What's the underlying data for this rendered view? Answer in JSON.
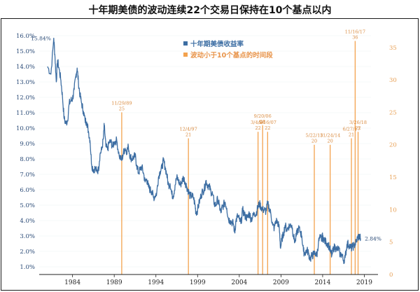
{
  "chart_data": {
    "type": "line",
    "title": "十年期美债的波动连续22个交易日保持在10个基点以内",
    "legend": [
      {
        "label": "十年期美债收益率",
        "color": "#3d6ea3"
      },
      {
        "label": "波动小于10个基点的时间段",
        "color": "#f3a24e"
      }
    ],
    "left_axis": {
      "ylim": [
        0.5,
        16.5
      ],
      "ticks": [
        "1.0%",
        "2.0%",
        "3.0%",
        "4.0%",
        "5.0%",
        "6.0%",
        "7.0%",
        "8.0%",
        "9.0%",
        "10.0%",
        "11.0%",
        "12.0%",
        "13.0%",
        "14.0%",
        "15.0%",
        "16.0%"
      ],
      "tick_values": [
        1,
        2,
        3,
        4,
        5,
        6,
        7,
        8,
        9,
        10,
        11,
        12,
        13,
        14,
        15,
        16
      ]
    },
    "right_axis": {
      "ylim": [
        0,
        38
      ],
      "ticks": [
        "0",
        "5",
        "10",
        "15",
        "20",
        "25",
        "30",
        "35"
      ],
      "tick_values": [
        0,
        5,
        10,
        15,
        20,
        25,
        30,
        35
      ]
    },
    "x_axis": {
      "xlim": [
        1980.0,
        2019.8
      ],
      "ticks": [
        "1984",
        "1989",
        "1994",
        "1999",
        "2004",
        "2009",
        "2014",
        "2019"
      ],
      "tick_values": [
        1984,
        1989,
        1994,
        1999,
        2004,
        2009,
        2014,
        2019
      ]
    },
    "series": [
      {
        "name": "十年期美债收益率",
        "color": "#3d6ea3",
        "points": [
          [
            1981.0,
            14.0
          ],
          [
            1981.4,
            13.5
          ],
          [
            1981.75,
            15.84
          ],
          [
            1981.9,
            14.6
          ],
          [
            1982.05,
            13.0
          ],
          [
            1982.2,
            14.4
          ],
          [
            1982.4,
            13.8
          ],
          [
            1982.6,
            13.1
          ],
          [
            1982.8,
            12.0
          ],
          [
            1983.0,
            10.6
          ],
          [
            1983.2,
            10.3
          ],
          [
            1983.4,
            10.5
          ],
          [
            1983.6,
            11.6
          ],
          [
            1983.8,
            11.8
          ],
          [
            1984.0,
            11.9
          ],
          [
            1984.2,
            12.5
          ],
          [
            1984.4,
            13.4
          ],
          [
            1984.55,
            13.9
          ],
          [
            1984.7,
            13.0
          ],
          [
            1984.9,
            12.1
          ],
          [
            1985.1,
            11.6
          ],
          [
            1985.3,
            11.1
          ],
          [
            1985.5,
            10.5
          ],
          [
            1985.7,
            10.4
          ],
          [
            1985.9,
            9.8
          ],
          [
            1986.1,
            9.2
          ],
          [
            1986.3,
            7.6
          ],
          [
            1986.5,
            7.3
          ],
          [
            1986.7,
            7.4
          ],
          [
            1986.9,
            7.2
          ],
          [
            1987.1,
            7.3
          ],
          [
            1987.3,
            8.3
          ],
          [
            1987.5,
            8.6
          ],
          [
            1987.7,
            9.3
          ],
          [
            1987.8,
            10.2
          ],
          [
            1988.0,
            8.8
          ],
          [
            1988.2,
            8.6
          ],
          [
            1988.4,
            9.1
          ],
          [
            1988.6,
            9.1
          ],
          [
            1988.8,
            8.8
          ],
          [
            1989.0,
            9.1
          ],
          [
            1989.3,
            9.2
          ],
          [
            1989.6,
            8.2
          ],
          [
            1989.9,
            7.9
          ],
          [
            1990.1,
            8.4
          ],
          [
            1990.3,
            8.7
          ],
          [
            1990.5,
            8.5
          ],
          [
            1990.7,
            8.8
          ],
          [
            1990.9,
            8.2
          ],
          [
            1991.1,
            8.0
          ],
          [
            1991.3,
            8.1
          ],
          [
            1991.5,
            8.2
          ],
          [
            1991.7,
            7.6
          ],
          [
            1991.9,
            7.1
          ],
          [
            1992.1,
            7.3
          ],
          [
            1992.3,
            7.5
          ],
          [
            1992.5,
            7.1
          ],
          [
            1992.7,
            6.5
          ],
          [
            1992.9,
            6.7
          ],
          [
            1993.1,
            6.2
          ],
          [
            1993.3,
            6.0
          ],
          [
            1993.5,
            5.9
          ],
          [
            1993.7,
            5.5
          ],
          [
            1993.9,
            5.6
          ],
          [
            1994.1,
            5.8
          ],
          [
            1994.3,
            6.8
          ],
          [
            1994.5,
            7.2
          ],
          [
            1994.7,
            7.4
          ],
          [
            1994.9,
            7.9
          ],
          [
            1995.1,
            7.5
          ],
          [
            1995.3,
            7.0
          ],
          [
            1995.5,
            6.3
          ],
          [
            1995.7,
            6.4
          ],
          [
            1995.9,
            5.7
          ],
          [
            1996.1,
            5.6
          ],
          [
            1996.3,
            6.3
          ],
          [
            1996.5,
            6.8
          ],
          [
            1996.7,
            6.6
          ],
          [
            1996.9,
            6.3
          ],
          [
            1997.1,
            6.5
          ],
          [
            1997.3,
            6.8
          ],
          [
            1997.5,
            6.5
          ],
          [
            1997.7,
            6.2
          ],
          [
            1997.9,
            5.9
          ],
          [
            1998.1,
            5.6
          ],
          [
            1998.3,
            5.6
          ],
          [
            1998.5,
            5.5
          ],
          [
            1998.7,
            5.0
          ],
          [
            1998.8,
            4.5
          ],
          [
            1999.0,
            4.7
          ],
          [
            1999.2,
            5.2
          ],
          [
            1999.4,
            5.6
          ],
          [
            1999.6,
            5.9
          ],
          [
            1999.8,
            6.0
          ],
          [
            2000.0,
            6.6
          ],
          [
            2000.2,
            6.3
          ],
          [
            2000.4,
            6.2
          ],
          [
            2000.6,
            5.9
          ],
          [
            2000.8,
            5.7
          ],
          [
            2001.0,
            5.1
          ],
          [
            2001.2,
            5.0
          ],
          [
            2001.4,
            5.4
          ],
          [
            2001.6,
            5.0
          ],
          [
            2001.8,
            4.5
          ],
          [
            2001.9,
            4.8
          ],
          [
            2002.1,
            5.0
          ],
          [
            2002.3,
            5.2
          ],
          [
            2002.5,
            4.8
          ],
          [
            2002.7,
            4.1
          ],
          [
            2002.9,
            4.0
          ],
          [
            2003.1,
            3.9
          ],
          [
            2003.3,
            3.8
          ],
          [
            2003.45,
            3.2
          ],
          [
            2003.6,
            4.0
          ],
          [
            2003.8,
            4.3
          ],
          [
            2004.0,
            4.1
          ],
          [
            2004.2,
            3.8
          ],
          [
            2004.4,
            4.7
          ],
          [
            2004.6,
            4.4
          ],
          [
            2004.8,
            4.2
          ],
          [
            2005.0,
            4.2
          ],
          [
            2005.2,
            4.5
          ],
          [
            2005.4,
            4.1
          ],
          [
            2005.6,
            4.2
          ],
          [
            2005.8,
            4.5
          ],
          [
            2006.0,
            4.4
          ],
          [
            2006.2,
            4.8
          ],
          [
            2006.4,
            5.1
          ],
          [
            2006.6,
            4.9
          ],
          [
            2006.8,
            4.7
          ],
          [
            2007.0,
            4.7
          ],
          [
            2007.2,
            4.6
          ],
          [
            2007.4,
            5.1
          ],
          [
            2007.6,
            4.8
          ],
          [
            2007.8,
            4.4
          ],
          [
            2008.0,
            3.7
          ],
          [
            2008.2,
            3.5
          ],
          [
            2008.4,
            4.0
          ],
          [
            2008.6,
            3.9
          ],
          [
            2008.8,
            3.5
          ],
          [
            2008.95,
            2.2
          ],
          [
            2009.1,
            2.8
          ],
          [
            2009.3,
            3.1
          ],
          [
            2009.5,
            3.7
          ],
          [
            2009.7,
            3.4
          ],
          [
            2009.9,
            3.6
          ],
          [
            2010.1,
            3.7
          ],
          [
            2010.3,
            3.7
          ],
          [
            2010.5,
            3.0
          ],
          [
            2010.7,
            2.6
          ],
          [
            2010.9,
            3.2
          ],
          [
            2011.1,
            3.5
          ],
          [
            2011.3,
            3.3
          ],
          [
            2011.5,
            3.0
          ],
          [
            2011.7,
            2.0
          ],
          [
            2011.9,
            1.9
          ],
          [
            2012.1,
            2.1
          ],
          [
            2012.3,
            1.9
          ],
          [
            2012.5,
            1.5
          ],
          [
            2012.7,
            1.7
          ],
          [
            2012.9,
            1.8
          ],
          [
            2013.1,
            1.9
          ],
          [
            2013.3,
            1.7
          ],
          [
            2013.5,
            2.6
          ],
          [
            2013.7,
            2.9
          ],
          [
            2013.9,
            2.8
          ],
          [
            2014.0,
            3.0
          ],
          [
            2014.2,
            2.7
          ],
          [
            2014.4,
            2.6
          ],
          [
            2014.6,
            2.5
          ],
          [
            2014.8,
            2.3
          ],
          [
            2015.0,
            1.9
          ],
          [
            2015.1,
            1.7
          ],
          [
            2015.3,
            2.2
          ],
          [
            2015.5,
            2.3
          ],
          [
            2015.7,
            2.1
          ],
          [
            2015.9,
            2.2
          ],
          [
            2016.1,
            1.8
          ],
          [
            2016.3,
            1.8
          ],
          [
            2016.5,
            1.4
          ],
          [
            2016.7,
            1.6
          ],
          [
            2016.9,
            2.4
          ],
          [
            2017.0,
            2.5
          ],
          [
            2017.2,
            2.4
          ],
          [
            2017.4,
            2.2
          ],
          [
            2017.6,
            2.3
          ],
          [
            2017.8,
            2.4
          ],
          [
            2018.0,
            2.6
          ],
          [
            2018.2,
            2.9
          ],
          [
            2018.4,
            3.0
          ],
          [
            2018.55,
            2.84
          ]
        ]
      }
    ],
    "start_label": {
      "x": 1981.75,
      "y": 15.84,
      "text": "15.84%"
    },
    "end_label": {
      "x": 2018.55,
      "y": 2.84,
      "text": "2.84%"
    },
    "periods": [
      {
        "x": 1989.9,
        "value": 25,
        "date": "11/29/89"
      },
      {
        "x": 1997.9,
        "value": 21,
        "date": "12/4/97"
      },
      {
        "x": 2006.25,
        "value": 22,
        "date": "3/4/06"
      },
      {
        "x": 2006.8,
        "value": 23,
        "date": "9/20/06"
      },
      {
        "x": 2007.4,
        "value": 22,
        "date": "5/16/07"
      },
      {
        "x": 2013.0,
        "value": 20,
        "date": "5/22/13"
      },
      {
        "x": 2014.9,
        "value": 20,
        "date": "11/24/14"
      },
      {
        "x": 2017.45,
        "value": 21,
        "date": "6/27/17"
      },
      {
        "x": 2017.9,
        "value": 36,
        "date": "11/16/17"
      },
      {
        "x": 2018.25,
        "value": 22,
        "date": "3/26/18"
      }
    ]
  }
}
